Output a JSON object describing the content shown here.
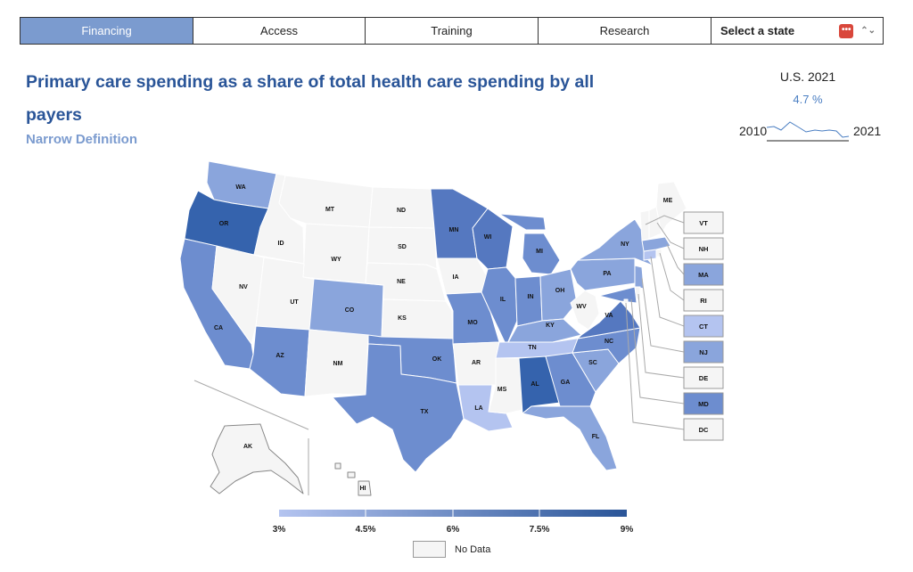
{
  "tabs": [
    {
      "label": "Financing",
      "active": true
    },
    {
      "label": "Access",
      "active": false
    },
    {
      "label": "Training",
      "active": false
    },
    {
      "label": "Research",
      "active": false
    }
  ],
  "state_select": {
    "label": "Select a state",
    "icon": "more-dots-icon"
  },
  "title": "Primary care spending as a share of total health care spending by all payers",
  "subtitle": "Narrow Definition",
  "us_summary": {
    "label": "U.S. 2021",
    "value": "4.7 %",
    "start_year": "2010",
    "end_year": "2021"
  },
  "states": {
    "WA": "WA",
    "OR": "OR",
    "CA": "CA",
    "ID": "ID",
    "NV": "NV",
    "MT": "MT",
    "WY": "WY",
    "UT": "UT",
    "AZ": "AZ",
    "CO": "CO",
    "NM": "NM",
    "ND": "ND",
    "SD": "SD",
    "NE": "NE",
    "KS": "KS",
    "OK": "OK",
    "TX": "TX",
    "MN": "MN",
    "IA": "IA",
    "MO": "MO",
    "AR": "AR",
    "LA": "LA",
    "WI": "WI",
    "IL": "IL",
    "MS": "MS",
    "MI": "MI",
    "IN": "IN",
    "KY": "KY",
    "TN": "TN",
    "AL": "AL",
    "OH": "OH",
    "GA": "GA",
    "FL": "FL",
    "SC": "SC",
    "NC": "NC",
    "VA": "VA",
    "WV": "WV",
    "PA": "PA",
    "NY": "NY",
    "ME": "ME",
    "AK": "AK",
    "HI": "HI"
  },
  "small_states": [
    "VT",
    "NH",
    "MA",
    "RI",
    "CT",
    "NJ",
    "DE",
    "MD",
    "DC"
  ],
  "legend": {
    "ticks": [
      "3%",
      "4.5%",
      "6%",
      "7.5%",
      "9%"
    ],
    "no_data": "No Data"
  },
  "colors": {
    "nodata": "#f5f5f5",
    "level1": "#b4c4f0",
    "level2": "#8aa5dc",
    "level3": "#6d8dcf",
    "level4": "#5578c0",
    "level5": "#3563ad",
    "accent": "#2a5598",
    "tab_active": "#7b9bcf"
  }
}
